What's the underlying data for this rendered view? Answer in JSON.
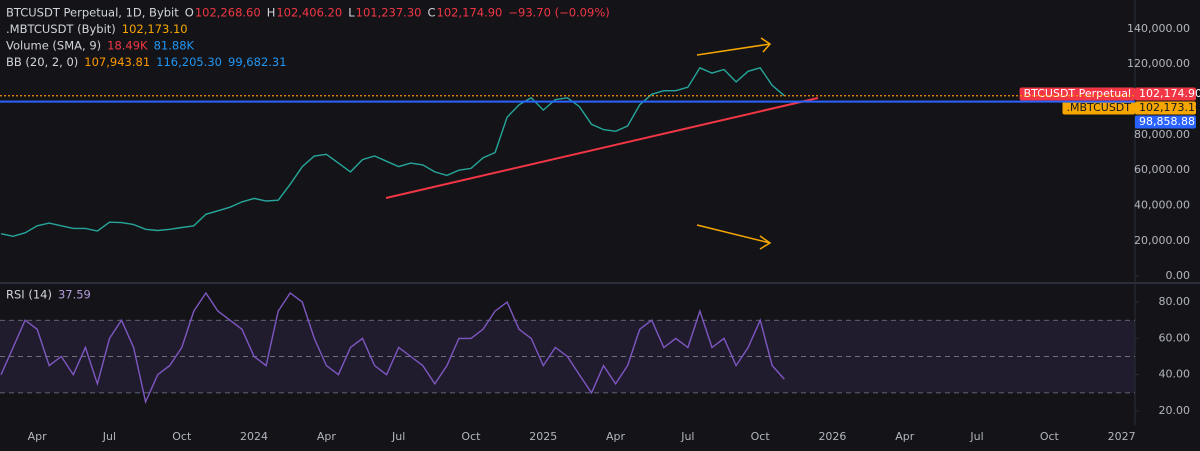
{
  "chart_data": [
    {
      "type": "line",
      "legend": [
        [
          {
            "text": "BTCUSDT Perpetual, 1D, Bybit",
            "color": "#d1d4dc"
          },
          {
            "text": "O",
            "color": "#d1d4dc"
          },
          {
            "text": "102,268.60",
            "color": "#f23645"
          },
          {
            "text": "H",
            "color": "#d1d4dc"
          },
          {
            "text": "102,406.20",
            "color": "#f23645"
          },
          {
            "text": "L",
            "color": "#d1d4dc"
          },
          {
            "text": "101,237.30",
            "color": "#f23645"
          },
          {
            "text": "C",
            "color": "#d1d4dc"
          },
          {
            "text": "102,174.90",
            "color": "#f23645"
          },
          {
            "text": "−93.70 (−0.09%)",
            "color": "#f23645"
          }
        ],
        [
          {
            "text": ".MBTCUSDT (Bybit)",
            "color": "#d1d4dc"
          },
          {
            "text": "102,173.10",
            "color": "#f7a600"
          }
        ],
        [
          {
            "text": "Volume (SMA, 9)",
            "color": "#d1d4dc"
          },
          {
            "text": "18.49K",
            "color": "#f23645"
          },
          {
            "text": "81.88K",
            "color": "#2196f3"
          }
        ],
        [
          {
            "text": "BB (20, 2, 0)",
            "color": "#d1d4dc"
          },
          {
            "text": "107,943.81",
            "color": "#ff9800"
          },
          {
            "text": "116,205.30",
            "color": "#2196f3"
          },
          {
            "text": "99,682.31",
            "color": "#2196f3"
          }
        ]
      ],
      "color": "#26a69a",
      "values": [
        24000,
        22500,
        24500,
        28500,
        30000,
        28500,
        27000,
        27000,
        25500,
        30500,
        30300,
        29200,
        26500,
        25800,
        26500,
        27500,
        28500,
        35000,
        37000,
        39000,
        42000,
        44000,
        42500,
        43000,
        52000,
        62000,
        68000,
        69000,
        64000,
        59000,
        66000,
        68000,
        65000,
        62000,
        64000,
        63000,
        59000,
        57000,
        60000,
        61000,
        67000,
        70000,
        90000,
        97000,
        101000,
        94000,
        100000,
        101000,
        96000,
        86000,
        83000,
        82000,
        85000,
        97000,
        103000,
        105000,
        105000,
        107000,
        118000,
        115000,
        117000,
        110000,
        116000,
        118000,
        108000,
        102174.9,
        null,
        null,
        null,
        null,
        null,
        null,
        null,
        null,
        null,
        null,
        null,
        null,
        null,
        null,
        null,
        null,
        null,
        null,
        null,
        null,
        null,
        null,
        null,
        null,
        null,
        null,
        null,
        null,
        null
      ],
      "ylim": [
        -2800,
        156400
      ],
      "yticks": [
        {
          "value": 140000,
          "label": "140,000.00"
        },
        {
          "value": 120000,
          "label": "120,000.00"
        },
        {
          "value": 80000,
          "label": "80,000.00"
        },
        {
          "value": 60000,
          "label": "60,000.00"
        },
        {
          "value": 40000,
          "label": "40,000.00"
        },
        {
          "value": 20000,
          "label": "20,000.00"
        },
        {
          "value": 0,
          "label": "0.00"
        }
      ],
      "price_lines": [
        {
          "name": "BTCUSDT Perpetual",
          "value": 102174.9,
          "label": "102,174.90",
          "color": "#f23645"
        },
        {
          "name": ".MBTCUSDT",
          "value": 102173.1,
          "label": "102,173.10",
          "color": "#f7a600"
        },
        {
          "value": 98858.88,
          "label": "98,858.88",
          "color": "#2962ff"
        }
      ]
    },
    {
      "type": "line",
      "legend": [
        [
          {
            "text": "RSI (14)",
            "color": "#d1d4dc"
          },
          {
            "text": "37.59",
            "color": "#b39ddb"
          }
        ]
      ],
      "color": "#7e57c2",
      "values": [
        40,
        55,
        70,
        65,
        45,
        50,
        40,
        55,
        35,
        60,
        70,
        55,
        25,
        40,
        45,
        55,
        75,
        85,
        75,
        70,
        65,
        50,
        45,
        75,
        85,
        80,
        60,
        45,
        40,
        55,
        60,
        45,
        40,
        55,
        50,
        45,
        35,
        45,
        60,
        60,
        65,
        75,
        80,
        65,
        60,
        45,
        55,
        50,
        40,
        30,
        45,
        35,
        45,
        65,
        70,
        55,
        60,
        55,
        75,
        55,
        60,
        45,
        55,
        70,
        45,
        37.59,
        null,
        null,
        null,
        null,
        null,
        null,
        null,
        null,
        null,
        null,
        null,
        null,
        null,
        null,
        null,
        null,
        null,
        null,
        null,
        null,
        null,
        null,
        null,
        null,
        null,
        null,
        null,
        null,
        null
      ],
      "ylim": [
        12.3,
        89.4
      ],
      "yticks": [
        {
          "value": 80,
          "label": "80.00"
        },
        {
          "value": 60,
          "label": "60.00"
        },
        {
          "value": 40,
          "label": "40.00"
        },
        {
          "value": 20,
          "label": "20.00"
        }
      ],
      "levels": [
        70,
        50,
        30
      ],
      "categories": [
        null,
        null,
        null,
        "Apr",
        null,
        null,
        null,
        null,
        null,
        "Jul",
        null,
        null,
        null,
        null,
        null,
        "Oct",
        null,
        null,
        null,
        null,
        null,
        "2024",
        null,
        null,
        null,
        null,
        null,
        "Apr",
        null,
        null,
        null,
        null,
        null,
        "Jul",
        null,
        null,
        null,
        null,
        null,
        "Oct",
        null,
        null,
        null,
        null,
        null,
        "2025",
        null,
        null,
        null,
        null,
        null,
        "Apr",
        null,
        null,
        null,
        null,
        null,
        "Jul",
        null,
        null,
        null,
        null,
        null,
        "Oct",
        null,
        null,
        null,
        null,
        null,
        "2026",
        null,
        null,
        null,
        null,
        null,
        "Apr",
        null,
        null,
        null,
        null,
        null,
        "Jul",
        null,
        null,
        null,
        null,
        null,
        "Oct",
        null,
        null,
        null,
        null,
        null,
        "2027",
        null
      ]
    }
  ]
}
